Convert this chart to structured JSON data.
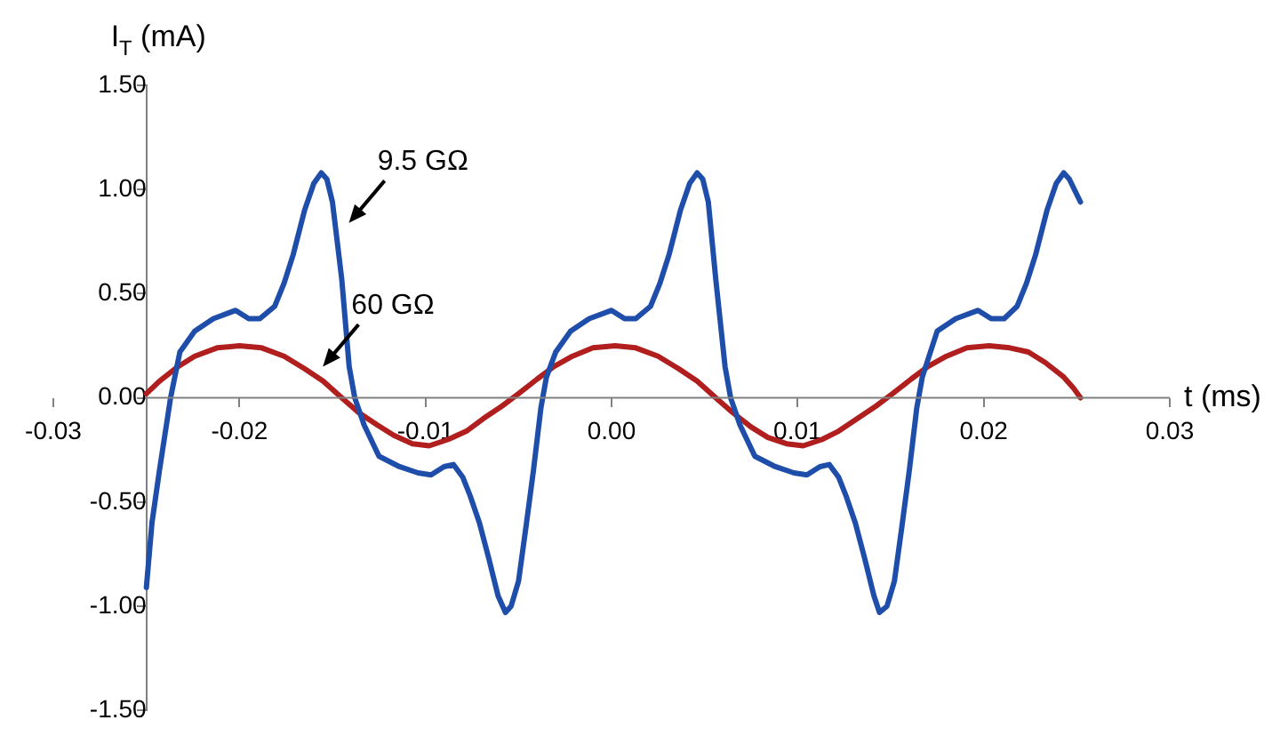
{
  "chart_data": {
    "type": "line",
    "xlabel": "t (ms)",
    "ylabel": "I$_{T}$ (mA)",
    "xlim": [
      -0.03,
      0.03
    ],
    "ylim": [
      -1.5,
      1.5
    ],
    "xticks": [
      {
        "value": -0.03,
        "label": "-0.03"
      },
      {
        "value": -0.02,
        "label": "-0.02"
      },
      {
        "value": -0.01,
        "label": "-0.01"
      },
      {
        "value": 0,
        "label": "0.00"
      },
      {
        "value": 0.01,
        "label": "0.01"
      },
      {
        "value": 0.02,
        "label": "0.02"
      },
      {
        "value": 0.03,
        "label": "0.03"
      }
    ],
    "yticks": [
      {
        "value": -1.5,
        "label": "-1.50"
      },
      {
        "value": -1,
        "label": "-1.00"
      },
      {
        "value": -0.5,
        "label": "-0.50"
      },
      {
        "value": 0,
        "label": "0.00"
      },
      {
        "value": 0.5,
        "label": "0.50"
      },
      {
        "value": 1,
        "label": "1.00"
      },
      {
        "value": 1.5,
        "label": "1.50"
      }
    ],
    "grid": false,
    "legend": false,
    "marker": "none",
    "line_style": "solid",
    "annotations": [
      {
        "text": "9.5 GΩ",
        "x": -0.0143,
        "y": 0.82
      },
      {
        "text": "60 GΩ",
        "x": -0.0157,
        "y": 0.13
      }
    ],
    "series": [
      {
        "color": "#1f4eaa",
        "x": [
          -0.025,
          -0.0247,
          -0.0243,
          -0.0237,
          -0.0232,
          -0.0224,
          -0.0214,
          -0.0202,
          -0.0195,
          -0.0189,
          -0.0181,
          -0.0176,
          -0.0171,
          -0.0165,
          -0.016,
          -0.0156,
          -0.0153,
          -0.015,
          -0.0145,
          -0.0141,
          -0.0138,
          -0.0133,
          -0.0125,
          -0.0114,
          -0.0104,
          -0.0097,
          -0.009,
          -0.0085,
          -0.008,
          -0.0076,
          -0.0071,
          -0.0066,
          -0.0061,
          -0.0057,
          -0.0054,
          -0.005,
          -0.0046,
          -0.0042,
          -0.0038,
          -0.0035,
          -0.003,
          -0.0022,
          -0.0012,
          0,
          0.0007,
          0.0013,
          0.0021,
          0.0026,
          0.0031,
          0.0037,
          0.0042,
          0.0046,
          0.0049,
          0.0052,
          0.0056,
          0.0061,
          0.0064,
          0.0069,
          0.0077,
          0.0088,
          0.0098,
          0.0105,
          0.0112,
          0.0117,
          0.0122,
          0.0126,
          0.0131,
          0.0136,
          0.0141,
          0.0144,
          0.0148,
          0.0152,
          0.0156,
          0.016,
          0.0164,
          0.0167,
          0.0175,
          0.0185,
          0.0197,
          0.0204,
          0.0211,
          0.0218,
          0.0223,
          0.0228,
          0.0234,
          0.0239,
          0.0243,
          0.0246,
          0.0252
        ],
        "values": [
          -0.91,
          -0.6,
          -0.35,
          0,
          0.22,
          0.32,
          0.38,
          0.42,
          0.38,
          0.38,
          0.44,
          0.55,
          0.69,
          0.9,
          1.03,
          1.08,
          1.05,
          0.94,
          0.57,
          0.15,
          0,
          -0.13,
          -0.28,
          -0.33,
          -0.36,
          -0.37,
          -0.33,
          -0.32,
          -0.38,
          -0.47,
          -0.6,
          -0.77,
          -0.95,
          -1.03,
          -1,
          -0.88,
          -0.62,
          -0.35,
          -0.05,
          0.1,
          0.22,
          0.32,
          0.38,
          0.42,
          0.38,
          0.38,
          0.44,
          0.55,
          0.69,
          0.9,
          1.03,
          1.08,
          1.05,
          0.94,
          0.57,
          0.15,
          0,
          -0.13,
          -0.28,
          -0.33,
          -0.36,
          -0.37,
          -0.33,
          -0.32,
          -0.38,
          -0.47,
          -0.6,
          -0.77,
          -0.95,
          -1.03,
          -1,
          -0.88,
          -0.62,
          -0.35,
          -0.05,
          0.1,
          0.32,
          0.38,
          0.42,
          0.38,
          0.38,
          0.44,
          0.55,
          0.69,
          0.9,
          1.03,
          1.08,
          1.05,
          0.94
        ]
      },
      {
        "color": "#b01e1e",
        "x": [
          -0.025,
          -0.0243,
          -0.0233,
          -0.0224,
          -0.0212,
          -0.02,
          -0.0188,
          -0.0176,
          -0.0165,
          -0.0155,
          -0.0145,
          -0.0136,
          -0.0126,
          -0.0117,
          -0.0107,
          -0.0098,
          -0.0088,
          -0.0078,
          -0.0069,
          -0.0059,
          -0.005,
          -0.004,
          -0.0031,
          -0.0021,
          -0.001,
          0.0002,
          0.0013,
          0.0025,
          0.0036,
          0.0046,
          0.0056,
          0.0065,
          0.0075,
          0.0084,
          0.0094,
          0.0103,
          0.0113,
          0.0122,
          0.0132,
          0.0142,
          0.0151,
          0.0161,
          0.017,
          0.018,
          0.0191,
          0.0203,
          0.0214,
          0.0224,
          0.0233,
          0.0243,
          0.0248,
          0.0252
        ],
        "values": [
          0.02,
          0.08,
          0.15,
          0.2,
          0.24,
          0.25,
          0.24,
          0.2,
          0.14,
          0.08,
          0,
          -0.07,
          -0.13,
          -0.18,
          -0.22,
          -0.23,
          -0.2,
          -0.16,
          -0.1,
          -0.04,
          0.02,
          0.09,
          0.15,
          0.2,
          0.24,
          0.25,
          0.24,
          0.2,
          0.14,
          0.08,
          0,
          -0.07,
          -0.14,
          -0.19,
          -0.22,
          -0.23,
          -0.2,
          -0.16,
          -0.1,
          -0.04,
          0.02,
          0.09,
          0.15,
          0.2,
          0.24,
          0.25,
          0.24,
          0.22,
          0.17,
          0.1,
          0.05,
          0
        ]
      }
    ]
  }
}
